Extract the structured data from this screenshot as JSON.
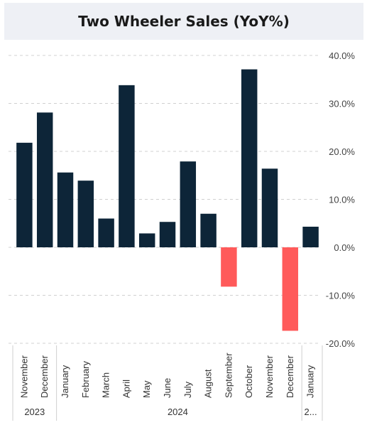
{
  "chart_data": {
    "type": "bar",
    "title": "Two Wheeler Sales (YoY%)",
    "categories": [
      "November",
      "December",
      "January",
      "February",
      "March",
      "April",
      "May",
      "June",
      "July",
      "August",
      "September",
      "October",
      "November",
      "December",
      "January"
    ],
    "values": [
      21.8,
      28.1,
      15.6,
      13.9,
      6.0,
      33.8,
      2.9,
      5.3,
      17.9,
      7.0,
      -8.2,
      37.1,
      16.4,
      -17.4,
      4.3
    ],
    "year_groups": [
      {
        "label": "2023",
        "count": 2
      },
      {
        "label": "2024",
        "count": 12
      },
      {
        "label": "2...",
        "count": 1
      }
    ],
    "ylim": [
      -20,
      40
    ],
    "yticks": [
      40,
      30,
      20,
      10,
      0,
      -10,
      -20
    ],
    "ytick_labels": [
      "40.0%",
      "30.0%",
      "20.0%",
      "10.0%",
      "0.0%",
      "-10.0%",
      "-20.0%"
    ],
    "colors": {
      "positive": "#0d2538",
      "negative": "#ff5a5a",
      "grid": "#d0d0d0"
    },
    "grid": true
  }
}
